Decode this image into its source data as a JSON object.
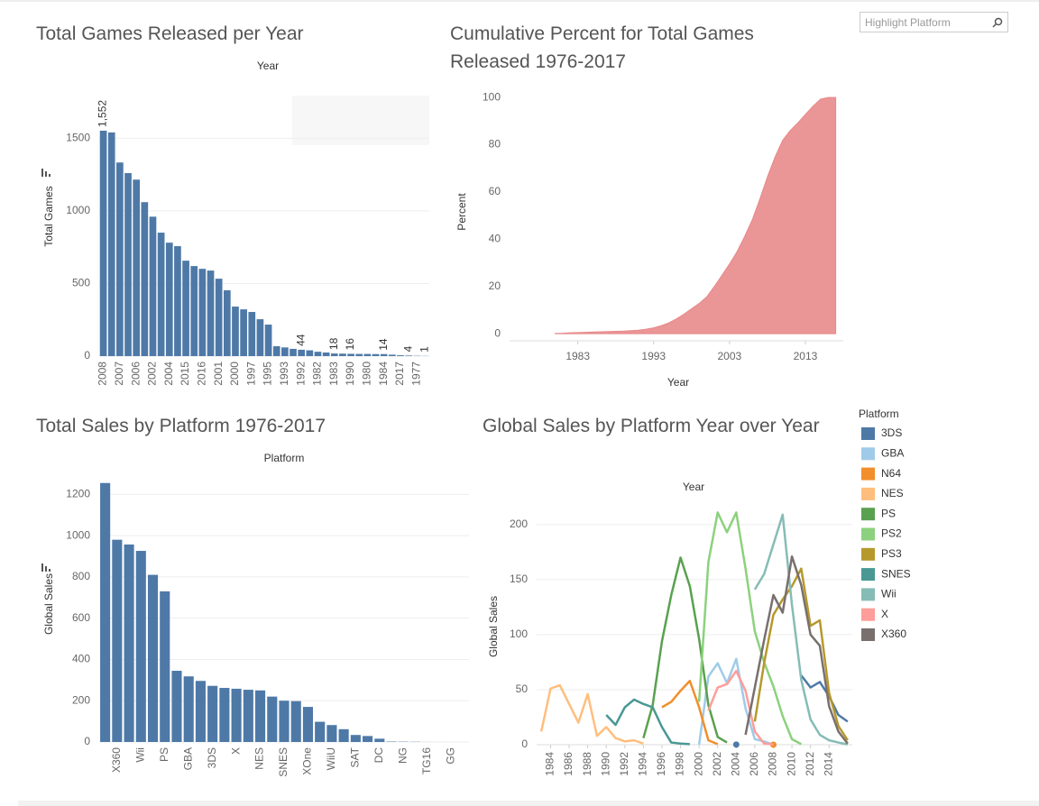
{
  "search_placeholder": "Highlight Platform",
  "chart_data": [
    {
      "type": "bar",
      "title": "Total Games Released per Year",
      "x_label": "Year",
      "y_label": "Total Games",
      "color": "#4e79a7",
      "categories": [
        "2008",
        null,
        "2007",
        null,
        "2006",
        null,
        "2002",
        null,
        "2004",
        null,
        "2015",
        null,
        "2016",
        null,
        "2001",
        null,
        "2000",
        null,
        "1997",
        null,
        "1995",
        null,
        "1993",
        null,
        "1992",
        null,
        "1982",
        null,
        "1983",
        null,
        "1990",
        null,
        "1980",
        null,
        "1984",
        null,
        "2017",
        null,
        "1977",
        null
      ],
      "values": [
        1552,
        1540,
        1333,
        1260,
        1215,
        1060,
        960,
        850,
        781,
        757,
        657,
        620,
        601,
        589,
        533,
        453,
        341,
        322,
        304,
        254,
        217,
        68,
        60,
        50,
        44,
        40,
        30,
        25,
        18,
        17,
        16,
        15,
        15,
        14,
        14,
        10,
        6,
        4,
        2,
        1
      ],
      "value_labels": [
        "1,552",
        null,
        null,
        null,
        null,
        null,
        null,
        null,
        null,
        null,
        null,
        null,
        null,
        null,
        null,
        null,
        null,
        null,
        null,
        null,
        null,
        null,
        null,
        null,
        "44",
        null,
        null,
        null,
        "18",
        null,
        "16",
        null,
        null,
        null,
        "14",
        null,
        null,
        "4",
        null,
        "1"
      ],
      "ylim": [
        0,
        1800
      ],
      "yticks": [
        0,
        500,
        1000,
        1500
      ],
      "grid": true
    },
    {
      "type": "area",
      "title": "Cumulative Percent for Total Games Released 1976-2017",
      "x_label": "Year",
      "y_label": "Percent",
      "color": "#e8898b",
      "x": [
        1980,
        1981,
        1982,
        1983,
        1984,
        1985,
        1986,
        1987,
        1988,
        1989,
        1990,
        1991,
        1992,
        1993,
        1994,
        1995,
        1996,
        1997,
        1998,
        1999,
        2000,
        2001,
        2002,
        2003,
        2004,
        2005,
        2006,
        2007,
        2008,
        2009,
        2010,
        2011,
        2012,
        2013,
        2014,
        2015,
        2016,
        2017
      ],
      "values": [
        0.1,
        0.2,
        0.4,
        0.5,
        0.6,
        0.7,
        0.8,
        0.9,
        1.0,
        1.1,
        1.3,
        1.5,
        1.9,
        2.5,
        3.4,
        4.6,
        6.3,
        8.3,
        10.6,
        12.8,
        15.6,
        20,
        24.7,
        29.5,
        34.8,
        41.2,
        48.2,
        57,
        66.4,
        74.8,
        81.8,
        86,
        89.2,
        92.8,
        96.3,
        99.3,
        100,
        100
      ],
      "xlim": [
        1974,
        2018
      ],
      "xticks": [
        1983,
        1993,
        2003,
        2013
      ],
      "ylim": [
        -3,
        105
      ],
      "yticks": [
        0,
        20,
        40,
        60,
        80,
        100
      ],
      "grid": false
    },
    {
      "type": "bar",
      "title": "Total Sales by Platform 1976-2017",
      "x_label": "Platform",
      "y_label": "Global Sales",
      "color": "#4e79a7",
      "categories": [
        null,
        "X360",
        null,
        "Wii",
        null,
        "PS",
        null,
        "GBA",
        null,
        "3DS",
        null,
        "X",
        null,
        "NES",
        null,
        "SNES",
        null,
        "XOne",
        null,
        "WiiU",
        null,
        "SAT",
        null,
        "DC",
        null,
        "NG",
        null,
        "TG16",
        null,
        "GG",
        null
      ],
      "values": [
        1255,
        980,
        957,
        926,
        810,
        730,
        345,
        318,
        296,
        272,
        262,
        258,
        253,
        250,
        220,
        200,
        198,
        170,
        98,
        82,
        62,
        34,
        29,
        16,
        2,
        1.4,
        1,
        0.2,
        0.1,
        0.04,
        0.03
      ],
      "ylim": [
        0,
        1280
      ],
      "yticks": [
        0,
        200,
        400,
        600,
        800,
        1000,
        1200
      ],
      "grid": true
    },
    {
      "type": "line",
      "title": "Global Sales by Platform Year over Year",
      "x_label": "Year",
      "y_label": "Global Sales",
      "legend_title": "Platform",
      "x": [
        1983,
        1984,
        1985,
        1986,
        1987,
        1988,
        1989,
        1990,
        1991,
        1992,
        1993,
        1994,
        1995,
        1996,
        1997,
        1998,
        1999,
        2000,
        2001,
        2002,
        2003,
        2004,
        2005,
        2006,
        2007,
        2008,
        2009,
        2010,
        2011,
        2012,
        2013,
        2014,
        2015,
        2016
      ],
      "xlim": [
        1982.5,
        2016.5
      ],
      "xticks": [
        1984,
        1986,
        1988,
        1990,
        1992,
        1994,
        1996,
        1998,
        2000,
        2002,
        2004,
        2006,
        2008,
        2010,
        2012,
        2014
      ],
      "ylim": [
        0,
        222
      ],
      "yticks": [
        0,
        50,
        100,
        150,
        200
      ],
      "grid": true,
      "series": [
        {
          "name": "3DS",
          "color": "#4e79a7",
          "values": [
            null,
            null,
            null,
            null,
            null,
            null,
            null,
            null,
            null,
            null,
            null,
            null,
            null,
            null,
            null,
            null,
            null,
            null,
            null,
            null,
            null,
            0.1,
            null,
            null,
            null,
            null,
            null,
            null,
            63,
            52,
            57,
            44,
            27,
            21
          ]
        },
        {
          "name": "GBA",
          "color": "#a0cbe8",
          "values": [
            null,
            null,
            null,
            null,
            null,
            null,
            null,
            null,
            null,
            null,
            null,
            null,
            null,
            null,
            null,
            null,
            null,
            0.1,
            62,
            74,
            56,
            78,
            33,
            5,
            3,
            0,
            null,
            null,
            null,
            null,
            null,
            null,
            null,
            null
          ]
        },
        {
          "name": "N64",
          "color": "#f28e2b",
          "values": [
            null,
            null,
            null,
            null,
            null,
            null,
            null,
            null,
            null,
            null,
            null,
            null,
            null,
            34,
            39,
            49,
            58,
            34,
            4,
            0.5,
            null,
            null,
            null,
            null,
            null,
            0,
            null,
            null,
            null,
            null,
            null,
            null,
            null,
            null
          ]
        },
        {
          "name": "NES",
          "color": "#ffbe7d",
          "values": [
            12,
            51,
            54,
            37,
            20,
            46,
            8,
            16,
            6,
            3,
            4,
            1,
            null,
            null,
            null,
            null,
            null,
            null,
            null,
            null,
            null,
            null,
            null,
            null,
            null,
            null,
            null,
            null,
            null,
            null,
            null,
            null,
            null,
            null
          ]
        },
        {
          "name": "PS",
          "color": "#59a14f",
          "values": [
            null,
            null,
            null,
            null,
            null,
            null,
            null,
            null,
            null,
            null,
            null,
            6,
            36,
            94,
            136,
            170,
            144,
            96,
            36,
            7,
            2,
            null,
            null,
            null,
            null,
            null,
            null,
            null,
            null,
            null,
            null,
            null,
            null,
            null
          ]
        },
        {
          "name": "PS2",
          "color": "#8cd17d",
          "values": [
            null,
            null,
            null,
            null,
            null,
            null,
            null,
            null,
            null,
            null,
            null,
            null,
            null,
            null,
            null,
            null,
            null,
            39,
            166,
            211,
            193,
            211,
            160,
            103,
            75,
            53,
            26,
            5,
            0.5,
            null,
            null,
            null,
            null,
            null
          ]
        },
        {
          "name": "PS3",
          "color": "#b6992d",
          "values": [
            null,
            null,
            null,
            null,
            null,
            null,
            null,
            null,
            null,
            null,
            null,
            null,
            null,
            null,
            null,
            null,
            null,
            null,
            null,
            null,
            null,
            null,
            null,
            21,
            74,
            118,
            132,
            144,
            160,
            108,
            113,
            47,
            17,
            4
          ]
        },
        {
          "name": "SNES",
          "color": "#499894",
          "values": [
            null,
            null,
            null,
            null,
            null,
            null,
            null,
            27,
            18,
            34,
            41,
            37,
            34,
            16,
            2,
            1,
            0.5,
            null,
            null,
            null,
            null,
            null,
            null,
            null,
            null,
            null,
            null,
            null,
            null,
            null,
            null,
            null,
            null,
            null
          ]
        },
        {
          "name": "Wii",
          "color": "#86bcb6",
          "values": [
            null,
            null,
            null,
            null,
            null,
            null,
            null,
            null,
            null,
            null,
            null,
            null,
            null,
            null,
            null,
            null,
            null,
            null,
            null,
            null,
            null,
            null,
            null,
            141,
            155,
            182,
            209,
            127,
            59,
            23,
            9,
            4,
            2,
            0.2
          ]
        },
        {
          "name": "X",
          "color": "#ff9d9a",
          "values": [
            null,
            null,
            null,
            null,
            null,
            null,
            null,
            null,
            null,
            null,
            null,
            null,
            null,
            null,
            null,
            null,
            null,
            null,
            31,
            52,
            55,
            67,
            49,
            12,
            1,
            0.2,
            null,
            null,
            null,
            null,
            null,
            null,
            null,
            null
          ]
        },
        {
          "name": "X360",
          "color": "#79706e",
          "values": [
            null,
            null,
            null,
            null,
            null,
            null,
            null,
            null,
            null,
            null,
            null,
            null,
            null,
            null,
            null,
            null,
            null,
            null,
            null,
            null,
            null,
            null,
            9,
            52,
            95,
            136,
            120,
            171,
            145,
            100,
            90,
            35,
            12,
            1
          ]
        }
      ]
    }
  ]
}
